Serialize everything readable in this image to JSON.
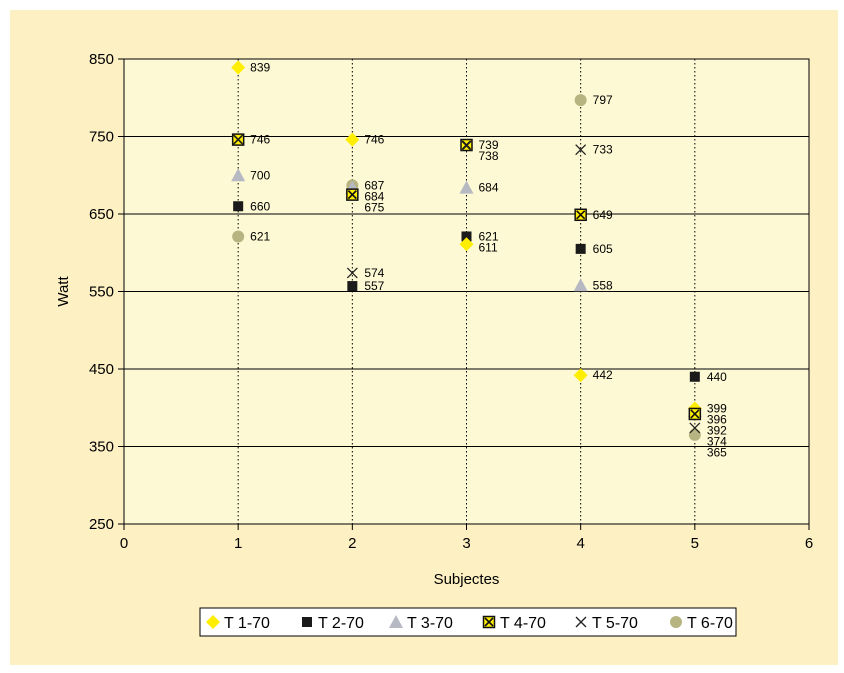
{
  "chart_data": {
    "type": "scatter",
    "xlabel": "Subjectes",
    "ylabel": "Watt",
    "xlim": [
      0,
      6
    ],
    "ylim": [
      250,
      850
    ],
    "x_ticks": [
      "0",
      "1",
      "2",
      "3",
      "4",
      "5",
      "6"
    ],
    "y_ticks": [
      "250",
      "350",
      "450",
      "550",
      "650",
      "750",
      "850"
    ],
    "grid": "horizontal solid, vertical dotted",
    "legend_position": "bottom",
    "colors": {
      "plot_background": "#fdf9d4",
      "frame_background": "#fdf1c4"
    },
    "series": [
      {
        "name": "T 1-70",
        "marker": "diamond",
        "color": "#ffee00",
        "points": [
          {
            "x": 1,
            "y": 839
          },
          {
            "x": 2,
            "y": 746
          },
          {
            "x": 3,
            "y": 611
          },
          {
            "x": 4,
            "y": 442
          },
          {
            "x": 5,
            "y": 399
          }
        ]
      },
      {
        "name": "T 2-70",
        "marker": "square",
        "color": "#1a1a1a",
        "points": [
          {
            "x": 1,
            "y": 660
          },
          {
            "x": 2,
            "y": 557
          },
          {
            "x": 3,
            "y": 621
          },
          {
            "x": 4,
            "y": 605
          },
          {
            "x": 5,
            "y": 440
          }
        ]
      },
      {
        "name": "T 3-70",
        "marker": "triangle",
        "color": "#b6b9c2",
        "points": [
          {
            "x": 1,
            "y": 700
          },
          {
            "x": 2,
            "y": 684
          },
          {
            "x": 3,
            "y": 684
          },
          {
            "x": 4,
            "y": 558
          },
          {
            "x": 5,
            "y": 396
          }
        ]
      },
      {
        "name": "T 4-70",
        "marker": "boxed-x",
        "color": "#ffee00",
        "points": [
          {
            "x": 1,
            "y": 746
          },
          {
            "x": 2,
            "y": 675
          },
          {
            "x": 3,
            "y": 739
          },
          {
            "x": 4,
            "y": 649
          },
          {
            "x": 5,
            "y": 392
          }
        ]
      },
      {
        "name": "T 5-70",
        "marker": "x",
        "color": "#222222",
        "points": [
          {
            "x": 1,
            "y": 746
          },
          {
            "x": 2,
            "y": 574
          },
          {
            "x": 3,
            "y": 738
          },
          {
            "x": 4,
            "y": 733
          },
          {
            "x": 5,
            "y": 374
          }
        ]
      },
      {
        "name": "T 6-70",
        "marker": "circle",
        "color": "#b8b482",
        "points": [
          {
            "x": 1,
            "y": 621
          },
          {
            "x": 2,
            "y": 687
          },
          {
            "x": 3,
            "y": 739
          },
          {
            "x": 4,
            "y": 797
          },
          {
            "x": 5,
            "y": 365
          }
        ]
      }
    ],
    "data_labels": [
      {
        "x": 1,
        "y": 839,
        "text": "839"
      },
      {
        "x": 1,
        "y": 746,
        "text": "746"
      },
      {
        "x": 1,
        "y": 700,
        "text": "700"
      },
      {
        "x": 1,
        "y": 660,
        "text": "660"
      },
      {
        "x": 1,
        "y": 621,
        "text": "621"
      },
      {
        "x": 2,
        "y": 746,
        "text": "746"
      },
      {
        "x": 2,
        "y": 687,
        "text": "687"
      },
      {
        "x": 2,
        "y": 684,
        "text": "684"
      },
      {
        "x": 2,
        "y": 675,
        "text": "675"
      },
      {
        "x": 2,
        "y": 574,
        "text": "574"
      },
      {
        "x": 2,
        "y": 557,
        "text": "557"
      },
      {
        "x": 3,
        "y": 739,
        "text": "739"
      },
      {
        "x": 3,
        "y": 738,
        "text": "738"
      },
      {
        "x": 3,
        "y": 684,
        "text": "684"
      },
      {
        "x": 3,
        "y": 621,
        "text": "621"
      },
      {
        "x": 3,
        "y": 611,
        "text": "611"
      },
      {
        "x": 4,
        "y": 797,
        "text": "797"
      },
      {
        "x": 4,
        "y": 733,
        "text": "733"
      },
      {
        "x": 4,
        "y": 649,
        "text": "649"
      },
      {
        "x": 4,
        "y": 605,
        "text": "605"
      },
      {
        "x": 4,
        "y": 558,
        "text": "558"
      },
      {
        "x": 4,
        "y": 442,
        "text": "442"
      },
      {
        "x": 5,
        "y": 440,
        "text": "440"
      },
      {
        "x": 5,
        "y": 399,
        "text": "399"
      },
      {
        "x": 5,
        "y": 396,
        "text": "396"
      },
      {
        "x": 5,
        "y": 392,
        "text": "392"
      },
      {
        "x": 5,
        "y": 374,
        "text": "374"
      },
      {
        "x": 5,
        "y": 365,
        "text": "365"
      }
    ]
  }
}
